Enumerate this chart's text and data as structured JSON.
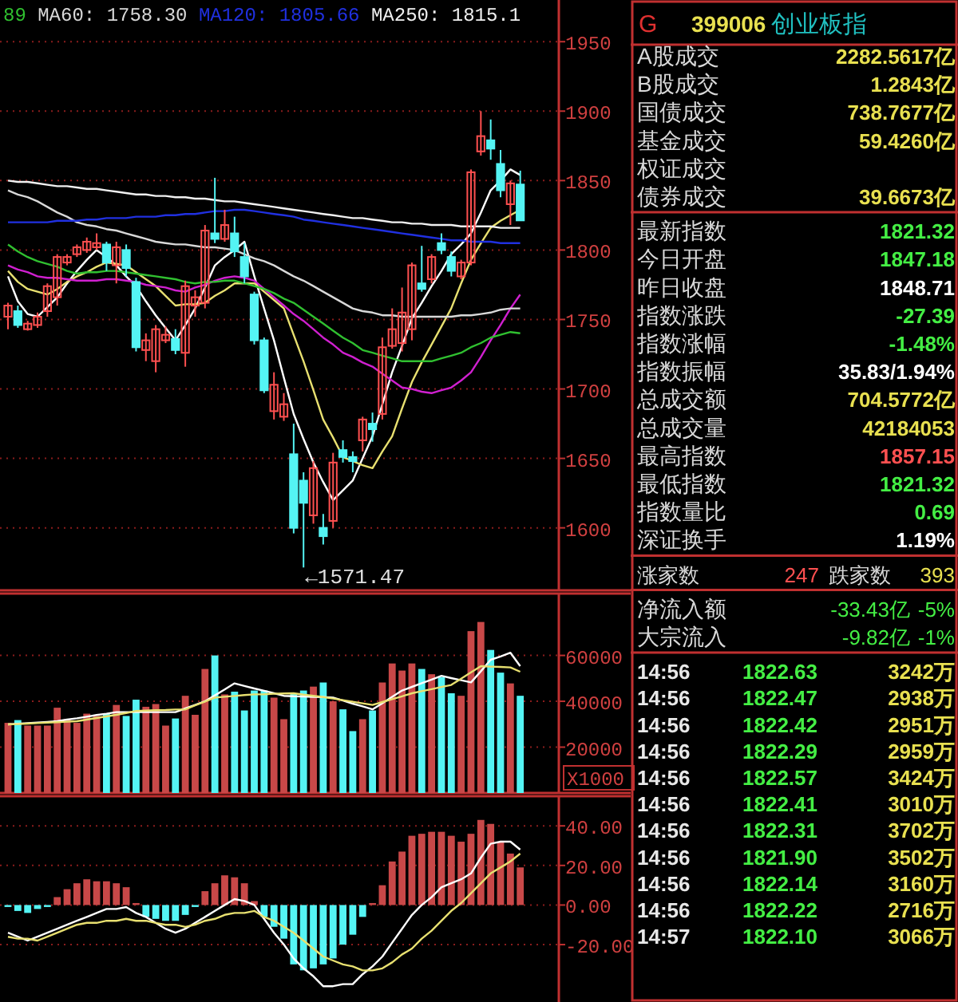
{
  "chart_data": [
    {
      "type": "candlestick",
      "categories": [
        null,
        null,
        null,
        null,
        null,
        null,
        null,
        null,
        null,
        null,
        null,
        null,
        null,
        null,
        null,
        null,
        null,
        null,
        null,
        null,
        null,
        null,
        null,
        null,
        null,
        null,
        null,
        null,
        null,
        null,
        null,
        null,
        null,
        null,
        null,
        null,
        null,
        null,
        null,
        null,
        null,
        null,
        null,
        null,
        null,
        null,
        null,
        null,
        null,
        null,
        null,
        null,
        null
      ],
      "ohlc": [
        [
          1752,
          1762,
          1743,
          1760
        ],
        [
          1756,
          1760,
          1744,
          1746
        ],
        [
          1743,
          1749,
          1742,
          1747
        ],
        [
          1746,
          1755,
          1744,
          1752
        ],
        [
          1756,
          1776,
          1752,
          1774
        ],
        [
          1766,
          1797,
          1760,
          1795
        ],
        [
          1791,
          1797,
          1789,
          1795
        ],
        [
          1797,
          1804,
          1795,
          1802
        ],
        [
          1800,
          1809,
          1798,
          1806
        ],
        [
          1802,
          1812,
          1800,
          1805
        ],
        [
          1804,
          1806,
          1785,
          1791
        ],
        [
          1789,
          1806,
          1776,
          1802
        ],
        [
          1800,
          1804,
          1781,
          1787
        ],
        [
          1777,
          1780,
          1727,
          1730
        ],
        [
          1728,
          1740,
          1720,
          1735
        ],
        [
          1720,
          1746,
          1712,
          1743
        ],
        [
          1735,
          1745,
          1733,
          1739
        ],
        [
          1736,
          1743,
          1725,
          1728
        ],
        [
          1726,
          1778,
          1716,
          1774
        ],
        [
          1760,
          1771,
          1752,
          1766
        ],
        [
          1762,
          1818,
          1758,
          1814
        ],
        [
          1812,
          1852,
          1805,
          1808
        ],
        [
          1808,
          1829,
          1806,
          1818
        ],
        [
          1812,
          1824,
          1795,
          1799
        ],
        [
          1795,
          1805,
          1776,
          1781
        ],
        [
          1768,
          1770,
          1732,
          1735
        ],
        [
          1735,
          1737,
          1697,
          1699
        ],
        [
          1684,
          1712,
          1678,
          1703
        ],
        [
          1680,
          1697,
          1677,
          1689
        ],
        [
          1653,
          1675,
          1596,
          1600
        ],
        [
          1634,
          1640,
          1571.47,
          1618
        ],
        [
          1609,
          1648,
          1603,
          1643
        ],
        [
          1600,
          1610,
          1588,
          1594
        ],
        [
          1605,
          1654,
          1600,
          1647
        ],
        [
          1656,
          1663,
          1647,
          1651
        ],
        [
          1651,
          1655,
          1640,
          1648
        ],
        [
          1663,
          1680,
          1655,
          1678
        ],
        [
          1675,
          1683,
          1662,
          1671
        ],
        [
          1682,
          1737,
          1678,
          1730
        ],
        [
          1731,
          1758,
          1729,
          1743
        ],
        [
          1733,
          1773,
          1727,
          1755
        ],
        [
          1743,
          1791,
          1735,
          1789
        ],
        [
          1776,
          1803,
          1770,
          1772
        ],
        [
          1779,
          1797,
          1776,
          1795
        ],
        [
          1805,
          1812,
          1797,
          1800
        ],
        [
          1795,
          1799,
          1781,
          1785
        ],
        [
          1781,
          1793,
          1779,
          1791
        ],
        [
          1791,
          1858,
          1789,
          1856
        ],
        [
          1871,
          1900,
          1868,
          1882
        ],
        [
          1879,
          1894,
          1865,
          1873
        ],
        [
          1862,
          1872,
          1838,
          1843
        ],
        [
          1833,
          1850,
          1818,
          1848
        ],
        [
          1847.18,
          1857.15,
          1821.32,
          1821.32
        ]
      ],
      "series": [
        {
          "type": "line",
          "color": "#ffffff",
          "values": [
            1781,
            1763,
            1754,
            1752,
            1759,
            1766,
            1776,
            1785,
            1793,
            1800,
            1795,
            1789,
            1781,
            1774,
            1763,
            1753,
            1744,
            1735,
            1746,
            1758,
            1773,
            1789,
            1795,
            1800,
            1806,
            1781,
            1758,
            1735,
            1708,
            1682,
            1664,
            1647,
            1633,
            1620,
            1627,
            1634,
            1650,
            1666,
            1689,
            1712,
            1731,
            1751,
            1762,
            1774,
            1785,
            1797,
            1804,
            1812,
            1827,
            1843,
            1850,
            1858,
            1854
          ]
        },
        {
          "type": "line",
          "color": "#e8e070",
          "values": [
            1785,
            1777,
            1772,
            1770,
            1768,
            1772,
            1777,
            1781,
            1784,
            1788,
            1791,
            1790,
            1789,
            1784,
            1779,
            1774,
            1767,
            1760,
            1761,
            1761,
            1762,
            1767,
            1771,
            1776,
            1776,
            1776,
            1770,
            1764,
            1758,
            1739,
            1720,
            1699,
            1678,
            1665,
            1651,
            1648,
            1645,
            1643,
            1655,
            1666,
            1686,
            1705,
            1719,
            1732,
            1745,
            1758,
            1776,
            1793,
            1805,
            1816,
            1821,
            1825,
            1829
          ]
        },
        {
          "type": "line",
          "color": "#d020d0",
          "values": [
            1789,
            1786,
            1784,
            1781,
            1780,
            1780,
            1779,
            1778,
            1778,
            1778,
            1779,
            1779,
            1778,
            1777,
            1775,
            1774,
            1773,
            1771,
            1770,
            1773,
            1775,
            1778,
            1780,
            1781,
            1780,
            1778,
            1772,
            1766,
            1760,
            1754,
            1749,
            1743,
            1737,
            1732,
            1726,
            1723,
            1719,
            1716,
            1711,
            1706,
            1701,
            1700,
            1698,
            1697,
            1699,
            1701,
            1706,
            1712,
            1723,
            1735,
            1746,
            1758,
            1768
          ]
        },
        {
          "type": "line",
          "name": "89",
          "color": "#30c030",
          "values": [
            1804,
            1799,
            1795,
            1792,
            1790,
            1788,
            1785,
            1783,
            1784,
            1784,
            1785,
            1785,
            1784,
            1783,
            1782,
            1781,
            1780,
            1779,
            1777,
            1776,
            1777,
            1777,
            1778,
            1778,
            1776,
            1774,
            1772,
            1769,
            1765,
            1762,
            1757,
            1752,
            1747,
            1742,
            1737,
            1733,
            1728,
            1726,
            1724,
            1722,
            1720,
            1720,
            1720,
            1720,
            1722,
            1724,
            1726,
            1730,
            1733,
            1737,
            1739,
            1741,
            1740
          ]
        },
        {
          "type": "line",
          "name": "MA60: 1758.30",
          "color": "#d8d8d8",
          "values": [
            1843,
            1840,
            1838,
            1835,
            1831,
            1827,
            1824,
            1820,
            1818,
            1817,
            1815,
            1814,
            1812,
            1810,
            1808,
            1806,
            1805,
            1804,
            1804,
            1803,
            1802,
            1802,
            1801,
            1800,
            1797,
            1794,
            1792,
            1789,
            1785,
            1781,
            1778,
            1774,
            1770,
            1766,
            1762,
            1758,
            1756,
            1755,
            1753,
            1753,
            1752,
            1752,
            1752,
            1752,
            1752,
            1752,
            1753,
            1753,
            1754,
            1755,
            1757,
            1758,
            1758
          ]
        },
        {
          "type": "line",
          "name": "MA120: 1805.66",
          "color": "#2030e0",
          "values": [
            1820,
            1820,
            1820,
            1820,
            1820,
            1821,
            1821,
            1821,
            1822,
            1822,
            1823,
            1823,
            1823,
            1824,
            1824,
            1824,
            1825,
            1825,
            1826,
            1826,
            1827,
            1828,
            1828,
            1829,
            1829,
            1828,
            1827,
            1826,
            1825,
            1824,
            1822,
            1821,
            1820,
            1819,
            1818,
            1817,
            1816,
            1815,
            1814,
            1813,
            1812,
            1811,
            1810,
            1809,
            1808,
            1807,
            1807,
            1806,
            1806,
            1806,
            1805,
            1805,
            1805
          ]
        },
        {
          "type": "line",
          "name": "MA250: 1815.1",
          "color": "#f0f0f0",
          "values": [
            1850,
            1849,
            1849,
            1848,
            1847,
            1846,
            1846,
            1845,
            1844,
            1844,
            1843,
            1842,
            1841,
            1840,
            1840,
            1839,
            1839,
            1838,
            1838,
            1837,
            1837,
            1836,
            1835,
            1835,
            1834,
            1833,
            1832,
            1831,
            1830,
            1829,
            1828,
            1827,
            1826,
            1825,
            1824,
            1823,
            1823,
            1822,
            1821,
            1820,
            1820,
            1819,
            1819,
            1818,
            1818,
            1818,
            1817,
            1817,
            1817,
            1817,
            1816,
            1816,
            1816
          ]
        }
      ],
      "ylim": [
        1555,
        1980
      ],
      "yticks": [
        1600,
        1650,
        1700,
        1750,
        1800,
        1850,
        1900,
        1950
      ],
      "grid": "y",
      "legend": "top left",
      "annotations": [
        "←1571.47"
      ]
    },
    {
      "type": "bar",
      "categories": [
        null,
        null,
        null,
        null,
        null,
        null,
        null,
        null,
        null,
        null,
        null,
        null,
        null,
        null,
        null,
        null,
        null,
        null,
        null,
        null,
        null,
        null,
        null,
        null,
        null,
        null,
        null,
        null,
        null,
        null,
        null,
        null,
        null,
        null,
        null,
        null,
        null,
        null,
        null,
        null,
        null,
        null,
        null,
        null,
        null,
        null,
        null,
        null,
        null,
        null,
        null,
        null,
        null
      ],
      "series": [
        {
          "type": "bar",
          "values": [
            30600,
            31800,
            29400,
            29400,
            29400,
            37200,
            32200,
            30600,
            34600,
            33600,
            34600,
            38400,
            33600,
            40700,
            37600,
            38800,
            29400,
            32500,
            42400,
            34100,
            54100,
            60000,
            43000,
            44200,
            36000,
            44700,
            44700,
            41600,
            32200,
            43500,
            44700,
            46400,
            48200,
            40000,
            36500,
            27000,
            32200,
            36000,
            48200,
            56500,
            53400,
            56500,
            54100,
            51800,
            50600,
            43500,
            42400,
            70600,
            74600,
            62400,
            52500,
            47800,
            42400
          ],
          "colors": [
            "#c84848",
            "#54f4f4",
            "#c84848",
            "#c84848",
            "#c84848",
            "#c84848",
            "#c84848",
            "#c84848",
            "#c84848",
            "#c84848",
            "#54f4f4",
            "#c84848",
            "#54f4f4",
            "#54f4f4",
            "#c84848",
            "#c84848",
            "#c84848",
            "#54f4f4",
            "#c84848",
            "#c84848",
            "#c84848",
            "#54f4f4",
            "#c84848",
            "#54f4f4",
            "#54f4f4",
            "#54f4f4",
            "#54f4f4",
            "#c84848",
            "#c84848",
            "#54f4f4",
            "#54f4f4",
            "#c84848",
            "#54f4f4",
            "#c84848",
            "#54f4f4",
            "#54f4f4",
            "#c84848",
            "#54f4f4",
            "#c84848",
            "#c84848",
            "#c84848",
            "#c84848",
            "#54f4f4",
            "#c84848",
            "#54f4f4",
            "#54f4f4",
            "#c84848",
            "#c84848",
            "#c84848",
            "#54f4f4",
            "#54f4f4",
            "#c84848",
            "#54f4f4"
          ]
        },
        {
          "type": "line",
          "color": "#ffffff",
          "values": [
            29900,
            30200,
            30500,
            30700,
            31000,
            31300,
            32000,
            32600,
            33300,
            34000,
            34600,
            35300,
            35300,
            35300,
            35300,
            35300,
            35300,
            35300,
            36900,
            38400,
            40000,
            42600,
            45200,
            47800,
            46700,
            45600,
            44600,
            43500,
            42400,
            42200,
            42100,
            41900,
            41800,
            41600,
            40300,
            39000,
            37800,
            36500,
            39200,
            42000,
            44700,
            46300,
            47900,
            49500,
            51100,
            50100,
            49200,
            48200,
            53100,
            58100,
            59600,
            61200,
            55300
          ]
        },
        {
          "type": "line",
          "color": "#e8e070",
          "values": [
            29900,
            30100,
            30300,
            30500,
            30700,
            30900,
            31100,
            31300,
            32000,
            32700,
            33400,
            34100,
            34900,
            35800,
            35900,
            36100,
            36200,
            36400,
            36500,
            38200,
            39900,
            41600,
            42000,
            42300,
            42700,
            43000,
            43100,
            43300,
            43400,
            43500,
            42900,
            42400,
            41800,
            41200,
            40500,
            39800,
            39100,
            38400,
            39700,
            40900,
            42200,
            43500,
            44400,
            45300,
            46200,
            47100,
            49800,
            52600,
            55300,
            55100,
            55000,
            54800,
            52900
          ]
        }
      ],
      "ylim": [
        0,
        87000
      ],
      "yticks": [
        20000,
        40000,
        60000
      ],
      "grid": "y",
      "annotations": [
        "X1000"
      ]
    },
    {
      "type": "bar",
      "categories": [
        null,
        null,
        null,
        null,
        null,
        null,
        null,
        null,
        null,
        null,
        null,
        null,
        null,
        null,
        null,
        null,
        null,
        null,
        null,
        null,
        null,
        null,
        null,
        null,
        null,
        null,
        null,
        null,
        null,
        null,
        null,
        null,
        null,
        null,
        null,
        null,
        null,
        null,
        null,
        null,
        null,
        null,
        null,
        null,
        null,
        null,
        null,
        null,
        null,
        null,
        null,
        null,
        null
      ],
      "series": [
        {
          "type": "bar",
          "values": [
            -1,
            -3,
            -4,
            -2,
            -1,
            4,
            8,
            11,
            13,
            12,
            12,
            11,
            9,
            1,
            -6,
            -7,
            -8,
            -8,
            -5,
            -1,
            7,
            11,
            15,
            14,
            11,
            2,
            -6,
            -11,
            -17,
            -30,
            -33,
            -32,
            -30,
            -27,
            -20,
            -15,
            -6,
            1,
            10,
            22,
            27,
            35,
            36,
            37,
            37,
            35,
            32,
            36,
            43,
            41,
            32,
            26,
            19
          ],
          "colors": [
            "#54f4f4",
            "#54f4f4",
            "#54f4f4",
            "#54f4f4",
            "#54f4f4",
            "#c84848",
            "#c84848",
            "#c84848",
            "#c84848",
            "#c84848",
            "#c84848",
            "#c84848",
            "#c84848",
            "#c84848",
            "#54f4f4",
            "#54f4f4",
            "#54f4f4",
            "#54f4f4",
            "#54f4f4",
            "#54f4f4",
            "#c84848",
            "#c84848",
            "#c84848",
            "#c84848",
            "#c84848",
            "#c84848",
            "#54f4f4",
            "#54f4f4",
            "#54f4f4",
            "#54f4f4",
            "#54f4f4",
            "#54f4f4",
            "#54f4f4",
            "#54f4f4",
            "#54f4f4",
            "#54f4f4",
            "#54f4f4",
            "#c84848",
            "#c84848",
            "#c84848",
            "#c84848",
            "#c84848",
            "#c84848",
            "#c84848",
            "#c84848",
            "#c84848",
            "#c84848",
            "#c84848",
            "#c84848",
            "#c84848",
            "#c84848",
            "#c84848",
            "#c84848"
          ]
        },
        {
          "type": "line",
          "color": "#ffffff",
          "values": [
            -14,
            -16,
            -18,
            -16,
            -14,
            -12,
            -10,
            -8,
            -6,
            -4,
            -2,
            -2,
            -1,
            -4,
            -6,
            -9,
            -12,
            -14,
            -12,
            -9,
            -6,
            -3,
            0,
            3,
            2,
            0,
            -7,
            -14,
            -20,
            -27,
            -32,
            -36,
            -41,
            -41,
            -40,
            -40,
            -35,
            -31,
            -26,
            -19,
            -12,
            -5,
            0,
            4,
            9,
            11,
            13,
            16,
            24,
            31,
            32,
            32,
            28
          ]
        },
        {
          "type": "line",
          "color": "#e8e070",
          "values": [
            -16,
            -17,
            -17,
            -18,
            -16,
            -14,
            -12,
            -10,
            -9,
            -9,
            -8,
            -8,
            -7,
            -8,
            -8,
            -9,
            -10,
            -10,
            -11,
            -10,
            -8,
            -7,
            -5,
            -4,
            -4,
            -3,
            -6,
            -8,
            -11,
            -14,
            -18,
            -22,
            -26,
            -28,
            -30,
            -31,
            -33,
            -33,
            -32,
            -29,
            -25,
            -22,
            -17,
            -13,
            -8,
            -3,
            1,
            6,
            11,
            16,
            19,
            22,
            26
          ]
        }
      ],
      "ylim": [
        -49,
        55
      ],
      "yticks": [
        {
          "value": -20,
          "label": "-20.00"
        },
        {
          "value": 0,
          "label": "0.00"
        },
        {
          "value": 20,
          "label": "20.00"
        },
        {
          "value": 40,
          "label": "40.00"
        }
      ],
      "grid": "y"
    },
    {
      "type": "other",
      "title": "399006",
      "subtitle": "创业板指",
      "annotations": [
        "G",
        "A股成交",
        "2282.5617亿",
        "B股成交",
        "1.2843亿",
        "国债成交",
        "738.7677亿",
        "基金成交",
        "59.4260亿",
        "权证成交",
        "债券成交",
        "39.6673亿",
        "最新指数",
        "1821.32",
        "今日开盘",
        "1847.18",
        "昨日收盘",
        "1848.71",
        "指数涨跌",
        "-27.39",
        "指数涨幅",
        "-1.48%",
        "指数振幅",
        "35.83/1.94%",
        "总成交额",
        "704.5772亿",
        "总成交量",
        "42184053",
        "最高指数",
        "1857.15",
        "最低指数",
        "1821.32",
        "指数量比",
        "0.69",
        "深证换手",
        "1.19%",
        "涨家数",
        "247",
        "跌家数",
        "393",
        "净流入额",
        "-33.43亿",
        "-5%",
        "大宗流入",
        "-9.82亿",
        "-1%",
        "14:56",
        "1822.63",
        "3242万",
        "14:56",
        "1822.47",
        "2938万",
        "14:56",
        "1822.42",
        "2951万",
        "14:56",
        "1822.29",
        "2959万",
        "14:56",
        "1822.57",
        "3424万",
        "14:56",
        "1822.41",
        "3010万",
        "14:56",
        "1822.31",
        "3702万",
        "14:56",
        "1821.90",
        "3502万",
        "14:56",
        "1822.14",
        "3160万",
        "14:56",
        "1822.22",
        "2716万",
        "14:57",
        "1822.10",
        "3066万"
      ]
    }
  ]
}
